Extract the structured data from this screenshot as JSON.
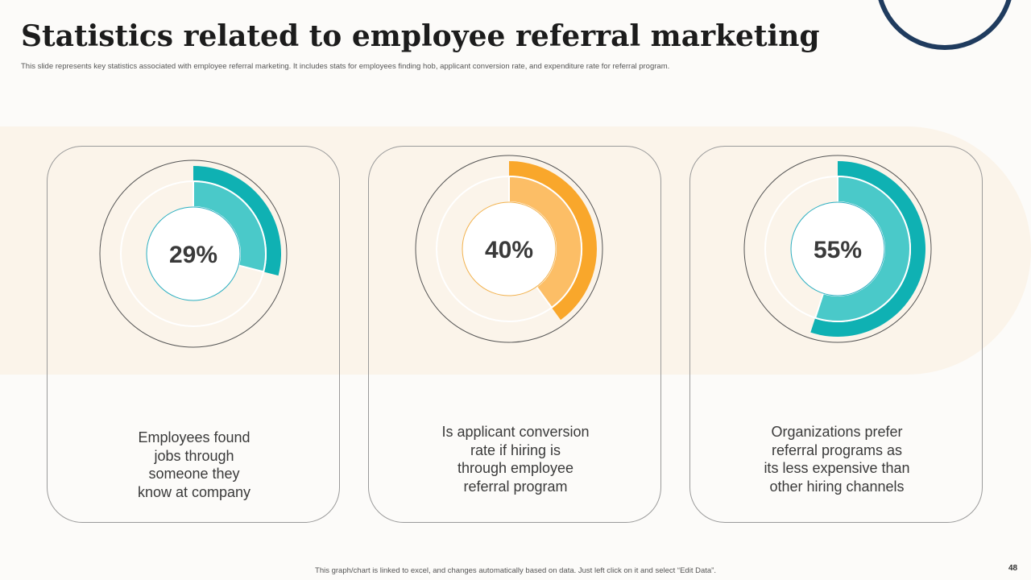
{
  "slide": {
    "title": "Statistics related to employee referral marketing",
    "subtitle": "This slide represents key statistics associated with employee referral marketing. It includes stats for employees finding hob, applicant conversion rate, and expenditure rate for referral program.",
    "footer": "This graph/chart is linked to excel, and changes automatically based on data. Just left click on it and select “Edit Data”.",
    "page_number": "48"
  },
  "colors": {
    "teal_outer": "#0fb1b3",
    "teal_inner": "#4ac9c9",
    "orange_outer": "#f9a72b",
    "orange_inner": "#fcbe66",
    "ring_line": "#555555",
    "band": "#fbf4ea",
    "corner_ring": "#1f3b5e"
  },
  "chart_data": [
    {
      "type": "pie",
      "variant": "donut",
      "values": [
        29,
        71
      ],
      "label": "29%",
      "description_lines": [
        "Employees found",
        "jobs through",
        "someone they",
        "know at company"
      ],
      "color_outer": "#0fb1b3",
      "color_inner": "#4ac9c9",
      "center_border": "#2aaec0"
    },
    {
      "type": "pie",
      "variant": "donut",
      "values": [
        40,
        60
      ],
      "label": "40%",
      "description_lines": [
        "Is applicant conversion",
        "rate if hiring is",
        "through employee",
        "referral program"
      ],
      "color_outer": "#f9a72b",
      "color_inner": "#fcbe66",
      "center_border": "#f2b24e"
    },
    {
      "type": "pie",
      "variant": "donut",
      "values": [
        55,
        45
      ],
      "label": "55%",
      "description_lines": [
        "Organizations prefer",
        "referral programs as",
        "its less expensive than",
        "other hiring channels"
      ],
      "color_outer": "#0fb1b3",
      "color_inner": "#4ac9c9",
      "center_border": "#2aaec0"
    }
  ]
}
